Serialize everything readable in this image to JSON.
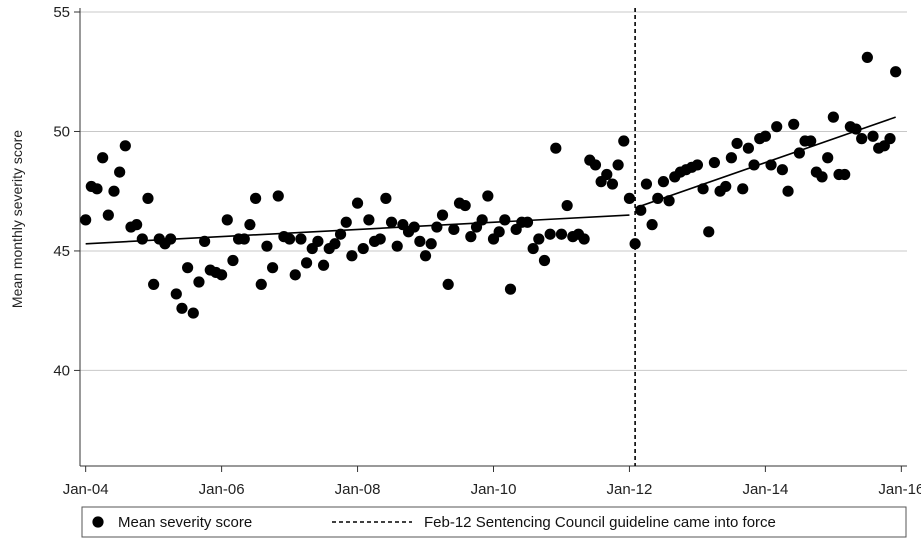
{
  "chart_data": {
    "type": "scatter",
    "title": "",
    "xlabel": "",
    "ylabel": "Mean monthly severity score",
    "ylim": [
      36,
      55
    ],
    "xlim": [
      "2003-12",
      "2016-02"
    ],
    "y_ticks": [
      40,
      45,
      50,
      55
    ],
    "x_ticks": [
      "Jan-04",
      "Jan-06",
      "Jan-08",
      "Jan-10",
      "Jan-12",
      "Jan-14",
      "Jan-16"
    ],
    "grid": true,
    "legend_position": "bottom",
    "colors": {
      "points": "#000000",
      "grid": "#c8c8c8",
      "line": "#000000"
    },
    "series": [
      {
        "name": "Mean severity score",
        "style": "markers",
        "x": [
          "2004-01",
          "2004-02",
          "2004-03",
          "2004-04",
          "2004-05",
          "2004-06",
          "2004-07",
          "2004-08",
          "2004-09",
          "2004-10",
          "2004-11",
          "2004-12",
          "2005-01",
          "2005-02",
          "2005-03",
          "2005-04",
          "2005-05",
          "2005-06",
          "2005-07",
          "2005-08",
          "2005-09",
          "2005-10",
          "2005-11",
          "2005-12",
          "2006-01",
          "2006-02",
          "2006-03",
          "2006-04",
          "2006-05",
          "2006-06",
          "2006-07",
          "2006-08",
          "2006-09",
          "2006-10",
          "2006-11",
          "2006-12",
          "2007-01",
          "2007-02",
          "2007-03",
          "2007-04",
          "2007-05",
          "2007-06",
          "2007-07",
          "2007-08",
          "2007-09",
          "2007-10",
          "2007-11",
          "2007-12",
          "2008-01",
          "2008-02",
          "2008-03",
          "2008-04",
          "2008-05",
          "2008-06",
          "2008-07",
          "2008-08",
          "2008-09",
          "2008-10",
          "2008-11",
          "2008-12",
          "2009-01",
          "2009-02",
          "2009-03",
          "2009-04",
          "2009-05",
          "2009-06",
          "2009-07",
          "2009-08",
          "2009-09",
          "2009-10",
          "2009-11",
          "2009-12",
          "2010-01",
          "2010-02",
          "2010-03",
          "2010-04",
          "2010-05",
          "2010-06",
          "2010-07",
          "2010-08",
          "2010-09",
          "2010-10",
          "2010-11",
          "2010-12",
          "2011-01",
          "2011-02",
          "2011-03",
          "2011-04",
          "2011-05",
          "2011-06",
          "2011-07",
          "2011-08",
          "2011-09",
          "2011-10",
          "2011-11",
          "2011-12",
          "2012-01",
          "2012-02",
          "2012-03",
          "2012-04",
          "2012-05",
          "2012-06",
          "2012-07",
          "2012-08",
          "2012-09",
          "2012-10",
          "2012-11",
          "2012-12",
          "2013-01",
          "2013-02",
          "2013-03",
          "2013-04",
          "2013-05",
          "2013-06",
          "2013-07",
          "2013-08",
          "2013-09",
          "2013-10",
          "2013-11",
          "2013-12",
          "2014-01",
          "2014-02",
          "2014-03",
          "2014-04",
          "2014-05",
          "2014-06",
          "2014-07",
          "2014-08",
          "2014-09",
          "2014-10",
          "2014-11",
          "2014-12",
          "2015-01",
          "2015-02",
          "2015-03",
          "2015-04",
          "2015-05",
          "2015-06",
          "2015-07",
          "2015-08",
          "2015-09",
          "2015-10",
          "2015-11",
          "2015-12"
        ],
        "y": [
          46.3,
          47.7,
          47.6,
          48.9,
          46.5,
          47.5,
          48.3,
          49.4,
          46.0,
          46.1,
          45.5,
          47.2,
          43.6,
          45.5,
          45.3,
          45.5,
          43.2,
          42.6,
          44.3,
          42.4,
          43.7,
          45.4,
          44.2,
          44.1,
          44.0,
          46.3,
          44.6,
          45.5,
          45.5,
          46.1,
          47.2,
          43.6,
          45.2,
          44.3,
          47.3,
          45.6,
          45.5,
          44.0,
          45.5,
          44.5,
          45.1,
          45.4,
          44.4,
          45.1,
          45.3,
          45.7,
          46.2,
          44.8,
          47.0,
          45.1,
          46.3,
          45.4,
          45.5,
          47.2,
          46.2,
          45.2,
          46.1,
          45.8,
          46.0,
          45.4,
          44.8,
          45.3,
          46.0,
          46.5,
          43.6,
          45.9,
          47.0,
          46.9,
          45.6,
          46.0,
          46.3,
          47.3,
          45.5,
          45.8,
          46.3,
          43.4,
          45.9,
          46.2,
          46.2,
          45.1,
          45.5,
          44.6,
          45.7,
          49.3,
          45.7,
          46.9,
          45.6,
          45.7,
          45.5,
          48.8,
          48.6,
          47.9,
          48.2,
          47.8,
          48.6,
          49.6,
          47.2,
          45.3,
          46.7,
          47.8,
          46.1,
          47.2,
          47.9,
          47.1,
          48.1,
          48.3,
          48.4,
          48.5,
          48.6,
          47.6,
          45.8,
          48.7,
          47.5,
          47.7,
          48.9,
          49.5,
          47.6,
          49.3,
          48.6,
          49.7,
          49.8,
          48.6,
          50.2,
          48.4,
          47.5,
          50.3,
          49.1,
          49.6,
          49.6,
          48.3,
          48.1,
          48.9,
          50.6,
          48.2,
          48.2,
          50.2,
          50.1,
          49.7,
          53.1,
          49.8,
          49.3,
          49.4,
          49.7,
          52.5
        ]
      },
      {
        "name": "",
        "style": "fitted-line",
        "segments": [
          {
            "x": [
              "2004-01",
              "2012-01"
            ],
            "y": [
              45.3,
              46.5
            ]
          },
          {
            "x": [
              "2012-02",
              "2015-12"
            ],
            "y": [
              46.8,
              50.6
            ]
          }
        ]
      }
    ],
    "reference_lines": [
      {
        "axis": "x",
        "x": "2012-02",
        "style": "dashed",
        "label": "Feb-12 Sentencing Council guideline came into force"
      }
    ],
    "legend": [
      {
        "symbol": "dot",
        "label": "Mean severity score"
      },
      {
        "symbol": "dashed-line",
        "label": "Feb-12 Sentencing Council guideline came into force"
      }
    ]
  }
}
